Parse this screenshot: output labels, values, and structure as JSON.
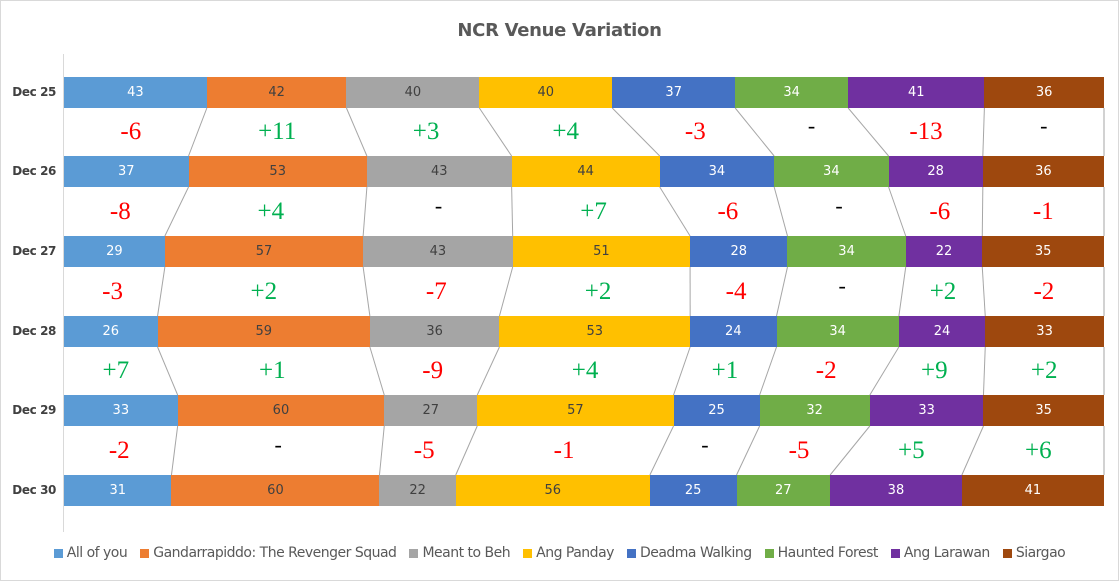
{
  "chart_data": {
    "type": "bar",
    "stacked": "percent",
    "orientation": "horizontal",
    "title": "NCR Venue Variation",
    "xlabel": "",
    "ylabel": "",
    "categories": [
      "Dec 25",
      "Dec 26",
      "Dec 27",
      "Dec 28",
      "Dec 29",
      "Dec 30"
    ],
    "series": [
      {
        "name": "All of you",
        "color": "#5B9BD5",
        "values": [
          43,
          37,
          29,
          26,
          33,
          31
        ]
      },
      {
        "name": "Gandarrapiddo: The Revenger Squad",
        "color": "#ED7D31",
        "values": [
          42,
          53,
          57,
          59,
          60,
          60
        ]
      },
      {
        "name": "Meant to Beh",
        "color": "#A5A5A5",
        "values": [
          40,
          43,
          43,
          36,
          27,
          22
        ]
      },
      {
        "name": "Ang Panday",
        "color": "#FFC000",
        "values": [
          40,
          44,
          51,
          53,
          57,
          56
        ]
      },
      {
        "name": "Deadma Walking",
        "color": "#4472C4",
        "values": [
          37,
          34,
          28,
          24,
          25,
          25
        ]
      },
      {
        "name": "Haunted Forest",
        "color": "#70AD47",
        "values": [
          34,
          34,
          34,
          34,
          32,
          27
        ]
      },
      {
        "name": "Ang Larawan",
        "color": "#7030A0",
        "values": [
          41,
          28,
          22,
          24,
          33,
          38
        ]
      },
      {
        "name": "Siargao",
        "color": "#9E480E",
        "values": [
          36,
          36,
          35,
          33,
          35,
          41
        ]
      }
    ],
    "variations": [
      {
        "between": "Dec 25 - Dec 26",
        "values": [
          "-6",
          "+11",
          "+3",
          "+4",
          "-3",
          "-",
          "-13",
          "-"
        ]
      },
      {
        "between": "Dec 26 - Dec 27",
        "values": [
          "-8",
          "+4",
          "-",
          "+7",
          "-6",
          "-",
          "-6",
          "-1"
        ]
      },
      {
        "between": "Dec 27 - Dec 28",
        "values": [
          "-3",
          "+2",
          "-7",
          "+2",
          "-4",
          "-",
          "+2",
          "-2"
        ]
      },
      {
        "between": "Dec 28 - Dec 29",
        "values": [
          "+7",
          "+1",
          "-9",
          "+4",
          "+1",
          "-2",
          "+9",
          "+2"
        ]
      },
      {
        "between": "Dec 29 - Dec 30",
        "values": [
          "-2",
          "-",
          "-5",
          "-1",
          "-",
          "-5",
          "+5",
          "+6"
        ]
      }
    ],
    "legend_position": "bottom",
    "grid": false,
    "data_labels": true,
    "annotation_colors": {
      "positive": "#00B050",
      "negative": "#FF0000",
      "none": "#000000"
    }
  },
  "title": "NCR Venue Variation"
}
